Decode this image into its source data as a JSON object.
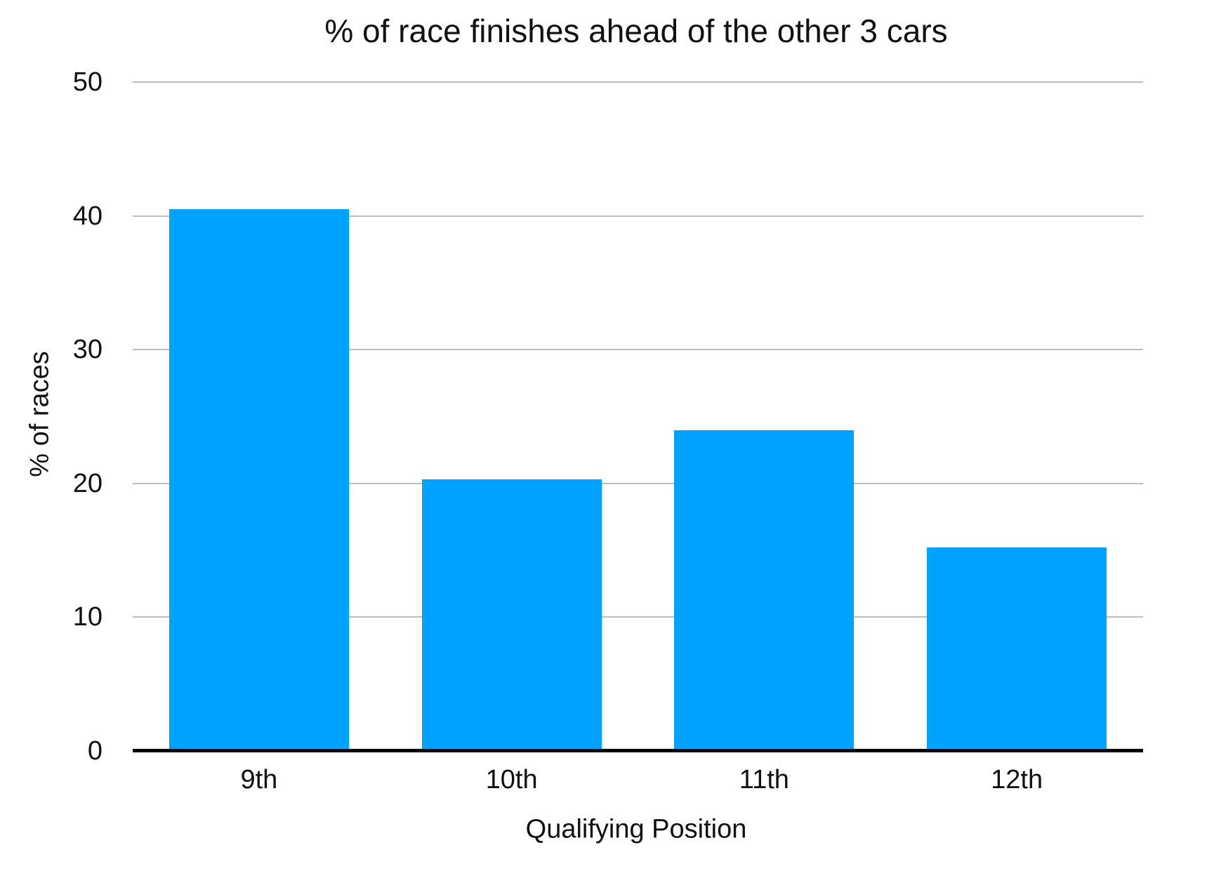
{
  "chart_data": {
    "type": "bar",
    "title": "% of race finishes ahead of the other 3 cars",
    "xlabel": "Qualifying Position",
    "ylabel": "% of races",
    "categories": [
      "9th",
      "10th",
      "11th",
      "12th"
    ],
    "values": [
      40.5,
      20.3,
      24.0,
      15.2
    ],
    "ylim": [
      0,
      50
    ],
    "yticks": [
      0,
      10,
      20,
      30,
      40,
      50
    ],
    "grid": "horizontal",
    "legend": "none",
    "colors": {
      "bar": "#00A2FF",
      "gridline": "#BDBDBD",
      "axis_line": "#000000",
      "text": "#111111",
      "background": "#FFFFFF"
    }
  }
}
